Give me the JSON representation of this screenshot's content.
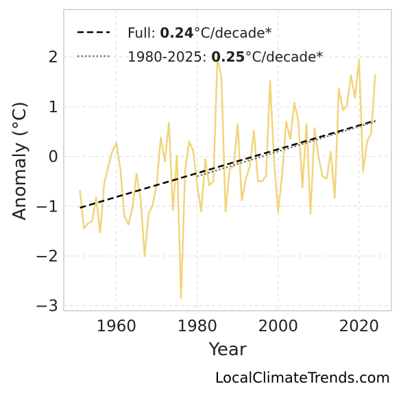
{
  "chart_data": {
    "type": "line",
    "xlabel": "Year",
    "ylabel": "Anomaly (°C)",
    "xlim": [
      1947,
      2028
    ],
    "ylim": [
      -3.1,
      2.95
    ],
    "x_ticks": [
      1960,
      1980,
      2000,
      2020
    ],
    "x_tick_labels": [
      "1960",
      "1980",
      "2000",
      "2020"
    ],
    "y_ticks": [
      -3,
      -2,
      -1,
      0,
      1,
      2
    ],
    "y_tick_labels": [
      "−3",
      "−2",
      "−1",
      "0",
      "1",
      "2"
    ],
    "grid": true,
    "legend_position": "top-left",
    "colors": {
      "anomaly": "#f0d57a",
      "full_trend": "#000000",
      "recent_trend": "#777777",
      "frame": "#cccccc",
      "grid": "#e0e0e0"
    },
    "series": [
      {
        "style": "solid",
        "x": [
          1951,
          1952,
          1953,
          1954,
          1955,
          1956,
          1957,
          1958,
          1959,
          1960,
          1961,
          1962,
          1963,
          1964,
          1965,
          1966,
          1967,
          1968,
          1969,
          1970,
          1971,
          1972,
          1973,
          1974,
          1975,
          1976,
          1977,
          1978,
          1979,
          1980,
          1981,
          1982,
          1983,
          1984,
          1985,
          1986,
          1987,
          1988,
          1989,
          1990,
          1991,
          1992,
          1993,
          1994,
          1995,
          1996,
          1997,
          1998,
          1999,
          2000,
          2001,
          2002,
          2003,
          2004,
          2005,
          2006,
          2007,
          2008,
          2009,
          2010,
          2011,
          2012,
          2013,
          2014,
          2015,
          2016,
          2017,
          2018,
          2019,
          2020,
          2021,
          2022,
          2023,
          2024
        ],
        "y": [
          -0.68,
          -1.45,
          -1.35,
          -1.3,
          -0.82,
          -1.53,
          -0.55,
          -0.2,
          0.1,
          0.27,
          -0.25,
          -1.2,
          -1.37,
          -1.02,
          -0.35,
          -0.85,
          -2.0,
          -1.15,
          -0.97,
          -0.55,
          0.38,
          -0.1,
          0.68,
          -1.08,
          0.02,
          -2.85,
          -0.3,
          0.3,
          0.12,
          -0.58,
          -1.1,
          -0.05,
          -0.58,
          -0.5,
          2.0,
          1.57,
          -1.1,
          -0.25,
          -0.2,
          0.65,
          -0.88,
          -0.45,
          -0.2,
          0.52,
          -0.5,
          -0.5,
          -0.4,
          1.52,
          -0.1,
          -1.12,
          -0.35,
          0.7,
          0.35,
          1.08,
          0.7,
          -0.62,
          0.65,
          -1.15,
          0.57,
          -0.02,
          -0.4,
          -0.45,
          0.1,
          -0.83,
          1.37,
          0.93,
          1.02,
          1.63,
          1.18,
          1.95,
          -0.3,
          0.3,
          0.47,
          1.65
        ]
      },
      {
        "name": "Full: ",
        "rate": "0.24",
        "unit": "°C/decade*",
        "style": "dashed",
        "x": [
          1951,
          2024
        ],
        "y": [
          -1.03,
          0.72
        ]
      },
      {
        "name": "1980-2025: ",
        "rate": "0.25",
        "unit": "°C/decade*",
        "style": "dotted",
        "x": [
          1980,
          2024
        ],
        "y": [
          -0.4,
          0.7
        ]
      }
    ]
  },
  "watermark": "LocalClimateTrends.com"
}
